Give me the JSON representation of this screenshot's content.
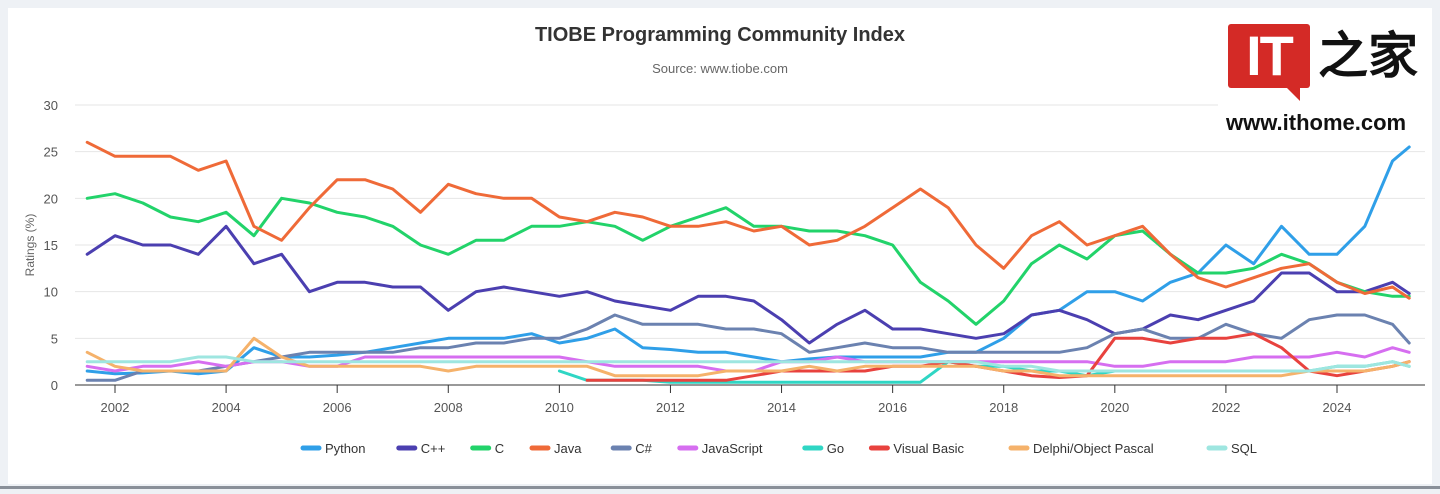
{
  "logo": {
    "brand": "IT之家",
    "box_text": "IT",
    "cn_text": "之家",
    "url": "www.ithome.com"
  },
  "chart_data": {
    "type": "line",
    "title": "TIOBE Programming Community Index",
    "subtitle": "Source: www.tiobe.com",
    "xlabel": "",
    "ylabel": "Ratings (%)",
    "ylim": [
      0,
      30
    ],
    "xlim": [
      2001.5,
      2025.3
    ],
    "yticks": [
      0,
      5,
      10,
      15,
      20,
      25,
      30
    ],
    "xticks": [
      2002,
      2004,
      2006,
      2008,
      2010,
      2012,
      2014,
      2016,
      2018,
      2020,
      2022,
      2024
    ],
    "grid": true,
    "legend_position": "bottom",
    "x": [
      2001.5,
      2002,
      2002.5,
      2003,
      2003.5,
      2004,
      2004.5,
      2005,
      2005.5,
      2006,
      2006.5,
      2007,
      2007.5,
      2008,
      2008.5,
      2009,
      2009.5,
      2010,
      2010.5,
      2011,
      2011.5,
      2012,
      2012.5,
      2013,
      2013.5,
      2014,
      2014.5,
      2015,
      2015.5,
      2016,
      2016.5,
      2017,
      2017.5,
      2018,
      2018.5,
      2019,
      2019.5,
      2020,
      2020.5,
      2021,
      2021.5,
      2022,
      2022.5,
      2023,
      2023.5,
      2024,
      2024.5,
      2025,
      2025.3
    ],
    "series": [
      {
        "name": "Python",
        "color": "#2f9fe8",
        "values": [
          1.5,
          1.2,
          1.3,
          1.5,
          1.2,
          1.5,
          4,
          3,
          3,
          3.2,
          3.5,
          4,
          4.5,
          5,
          5,
          5,
          5.5,
          4.5,
          5,
          6,
          4,
          3.8,
          3.5,
          3.5,
          3,
          2.5,
          2.8,
          3,
          3,
          3,
          3,
          3.5,
          3.5,
          5,
          7.5,
          8,
          10,
          10,
          9,
          11,
          12,
          15,
          13,
          17,
          14,
          14,
          17,
          24,
          25.5
        ]
      },
      {
        "name": "C++",
        "color": "#4b3fb0",
        "values": [
          14,
          16,
          15,
          15,
          14,
          17,
          13,
          14,
          10,
          11,
          11,
          10.5,
          10.5,
          8,
          10,
          10.5,
          10,
          9.5,
          10,
          9,
          8.5,
          8,
          9.5,
          9.5,
          9,
          7,
          4.5,
          6.5,
          8,
          6,
          6,
          5.5,
          5,
          5.5,
          7.5,
          8,
          7,
          5.5,
          6,
          7.5,
          7,
          8,
          9,
          12,
          12,
          10,
          10,
          11,
          9.8
        ]
      },
      {
        "name": "C",
        "color": "#22d36a",
        "values": [
          20,
          20.5,
          19.5,
          18,
          17.5,
          18.5,
          16,
          20,
          19.5,
          18.5,
          18,
          17,
          15,
          14,
          15.5,
          15.5,
          17,
          17,
          17.5,
          17,
          15.5,
          17,
          18,
          19,
          17,
          17,
          16.5,
          16.5,
          16,
          15,
          11,
          9,
          6.5,
          9,
          13,
          15,
          13.5,
          16,
          16.5,
          14,
          12,
          12,
          12.5,
          14,
          13,
          11,
          10,
          9.5,
          9.5
        ]
      },
      {
        "name": "Java",
        "color": "#ef6a38",
        "values": [
          26,
          24.5,
          24.5,
          24.5,
          23,
          24,
          17,
          15.5,
          19,
          22,
          22,
          21,
          18.5,
          21.5,
          20.5,
          20,
          20,
          18,
          17.5,
          18.5,
          18,
          17,
          17,
          17.5,
          16.5,
          17,
          15,
          15.5,
          17,
          19,
          21,
          19,
          15,
          12.5,
          16,
          17.5,
          15,
          16,
          17,
          14,
          11.5,
          10.5,
          11.5,
          12.5,
          13,
          11,
          9.8,
          10.5,
          9.3
        ]
      },
      {
        "name": "C#",
        "color": "#6b82b0",
        "values": [
          0.5,
          0.5,
          1.5,
          1.5,
          1.5,
          2,
          2.5,
          3,
          3.5,
          3.5,
          3.5,
          3.5,
          4,
          4,
          4.5,
          4.5,
          5,
          5,
          6,
          7.5,
          6.5,
          6.5,
          6.5,
          6,
          6,
          5.5,
          3.5,
          4,
          4.5,
          4,
          4,
          3.5,
          3.5,
          3.5,
          3.5,
          3.5,
          4,
          5.5,
          6,
          5,
          5,
          6.5,
          5.5,
          5,
          7,
          7.5,
          7.5,
          6.5,
          4.5
        ]
      },
      {
        "name": "JavaScript",
        "color": "#d66ef0",
        "values": [
          2,
          1.5,
          2,
          2,
          2.5,
          2,
          2.5,
          2.5,
          2,
          2,
          3,
          3,
          3,
          3,
          3,
          3,
          3,
          3,
          2.5,
          2,
          2,
          2,
          2,
          1.5,
          1.5,
          2.5,
          2.5,
          3,
          2.5,
          2.5,
          2.5,
          2.5,
          2.5,
          2.5,
          2.5,
          2.5,
          2.5,
          2,
          2,
          2.5,
          2.5,
          2.5,
          3,
          3,
          3,
          3.5,
          3,
          4,
          3.5
        ]
      },
      {
        "name": "Go",
        "color": "#2fd6c4",
        "values": [
          null,
          null,
          null,
          null,
          null,
          null,
          null,
          null,
          null,
          null,
          null,
          null,
          null,
          null,
          null,
          null,
          null,
          1.5,
          0.5,
          0.5,
          0.5,
          0.3,
          0.3,
          0.3,
          0.3,
          0.3,
          0.3,
          0.3,
          0.3,
          0.3,
          0.3,
          2.5,
          2,
          2,
          1.5,
          1.5,
          1,
          1.5,
          1.5,
          1.5,
          1.5,
          1.5,
          1.5,
          1.5,
          1.5,
          2,
          2,
          2.5,
          2
        ]
      },
      {
        "name": "Visual Basic",
        "color": "#e8423e",
        "values": [
          null,
          null,
          null,
          null,
          null,
          null,
          null,
          null,
          null,
          null,
          null,
          null,
          null,
          null,
          null,
          null,
          null,
          null,
          0.5,
          0.5,
          0.5,
          0.5,
          0.5,
          0.5,
          1,
          1.5,
          1.5,
          1.5,
          1.5,
          2,
          2,
          2.5,
          2,
          1.5,
          1,
          0.8,
          1,
          5,
          5,
          4.5,
          5,
          5,
          5.5,
          4,
          1.5,
          1,
          1.5,
          2,
          2.5
        ]
      },
      {
        "name": "Delphi/Object Pascal",
        "color": "#f5b26b",
        "values": [
          3.5,
          2,
          1.5,
          1.5,
          1.5,
          1.5,
          5,
          3,
          2,
          2,
          2,
          2,
          2,
          1.5,
          2,
          2,
          2,
          2,
          2,
          1,
          1,
          1,
          1,
          1.5,
          1.5,
          1.5,
          2,
          1.5,
          2,
          2,
          2,
          2,
          2,
          1.5,
          1.5,
          1,
          1,
          1,
          1,
          1,
          1,
          1,
          1,
          1,
          1.5,
          1.5,
          1.5,
          2,
          2.5
        ]
      },
      {
        "name": "SQL",
        "color": "#9ee6e0",
        "values": [
          2.5,
          2.5,
          2.5,
          2.5,
          3,
          3,
          2.5,
          2.5,
          2.5,
          2.5,
          2.5,
          2.5,
          2.5,
          2.5,
          2.5,
          2.5,
          2.5,
          2.5,
          2.5,
          2.5,
          2.5,
          2.5,
          2.5,
          2.5,
          2.5,
          2.5,
          2.5,
          2.5,
          2.5,
          2.5,
          2.5,
          2.5,
          2.5,
          2,
          2,
          1.5,
          1.5,
          1.5,
          1.5,
          1.5,
          1.5,
          1.5,
          1.5,
          1.5,
          1.5,
          2,
          2,
          2.5,
          2
        ]
      }
    ]
  }
}
